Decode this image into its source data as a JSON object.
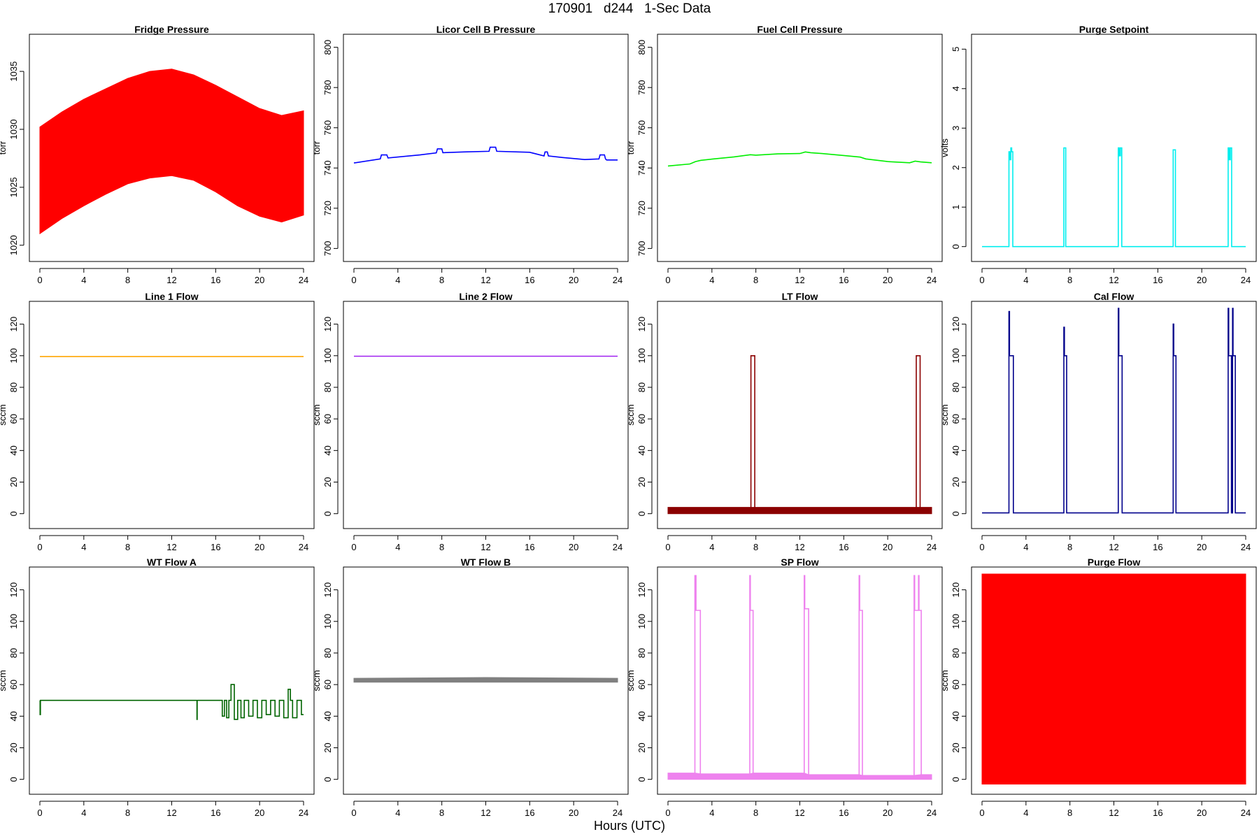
{
  "figure": {
    "title": "170901   d244   1-Sec Data",
    "xlabel": "Hours (UTC)"
  },
  "chart_data": [
    {
      "type": "line",
      "title": "Fridge Pressure",
      "ylabel": "torr",
      "color": "#ff0000",
      "xlim": [
        0,
        24
      ],
      "ylim": [
        1019.2,
        1037.6
      ],
      "xticks": [
        0,
        4,
        8,
        12,
        16,
        20,
        24
      ],
      "yticks": [
        1020,
        1025,
        1030,
        1035
      ],
      "band": {
        "x": [
          0,
          2,
          4,
          6,
          8,
          10,
          12,
          14,
          16,
          18,
          20,
          22,
          24
        ],
        "low": [
          1021,
          1022.3,
          1023.4,
          1024.4,
          1025.3,
          1025.8,
          1026,
          1025.6,
          1024.6,
          1023.4,
          1022.5,
          1022,
          1022.6
        ],
        "high": [
          1030.2,
          1031.5,
          1032.6,
          1033.5,
          1034.4,
          1035,
          1035.2,
          1034.7,
          1033.8,
          1032.8,
          1031.8,
          1031.2,
          1031.6
        ]
      }
    },
    {
      "type": "line",
      "title": "Licor Cell B Pressure",
      "ylabel": "torr",
      "color": "#0000ff",
      "xlim": [
        0,
        24
      ],
      "ylim": [
        697,
        803
      ],
      "xticks": [
        0,
        4,
        8,
        12,
        16,
        20,
        24
      ],
      "yticks": [
        700,
        720,
        740,
        760,
        780,
        800
      ],
      "x": [
        0,
        2.4,
        2.5,
        3,
        3.1,
        6,
        7.5,
        7.6,
        8,
        8.1,
        10,
        12.3,
        12.4,
        12.9,
        13,
        16,
        17.3,
        17.4,
        17.6,
        17.7,
        19,
        21,
        22.3,
        22.4,
        22.8,
        22.9,
        23,
        24
      ],
      "y": [
        742.5,
        744.5,
        746.5,
        746.5,
        745,
        746.5,
        747.5,
        749.5,
        749.5,
        747.6,
        748,
        748.3,
        750.3,
        750.3,
        748.3,
        747.8,
        746,
        748,
        748,
        746,
        745.2,
        744.2,
        744.5,
        746.5,
        746.5,
        744.5,
        744,
        744
      ]
    },
    {
      "type": "line",
      "title": "Fuel Cell Pressure",
      "ylabel": "torr",
      "color": "#00ee00",
      "xlim": [
        0,
        24
      ],
      "ylim": [
        697,
        803
      ],
      "xticks": [
        0,
        4,
        8,
        12,
        16,
        20,
        24
      ],
      "yticks": [
        700,
        720,
        740,
        760,
        780,
        800
      ],
      "x": [
        0,
        2,
        2.5,
        3,
        4,
        6,
        7.5,
        8,
        10,
        12,
        12.5,
        13,
        14,
        16,
        17.5,
        18,
        20,
        22,
        22.5,
        23,
        24
      ],
      "y": [
        741,
        742,
        743.2,
        743.8,
        744.4,
        745.5,
        746.6,
        746.4,
        747,
        747.2,
        748,
        747.6,
        747.2,
        746.2,
        745.4,
        744.5,
        743.2,
        742.6,
        743.4,
        743,
        742.6
      ]
    },
    {
      "type": "line",
      "title": "Purge Setpoint",
      "ylabel": "volts",
      "color": "#00eeee",
      "xlim": [
        0,
        24
      ],
      "ylim": [
        -0.2,
        5.2
      ],
      "xticks": [
        0,
        4,
        8,
        12,
        16,
        20,
        24
      ],
      "yticks": [
        0,
        1,
        2,
        3,
        4,
        5
      ],
      "x": [
        0,
        2.45,
        2.45,
        2.55,
        2.55,
        2.62,
        2.62,
        2.7,
        2.7,
        2.8,
        2.8,
        7.45,
        7.45,
        7.62,
        7.62,
        12.4,
        12.4,
        12.5,
        12.5,
        12.6,
        12.6,
        12.72,
        12.72,
        17.4,
        17.4,
        17.6,
        17.6,
        22.4,
        22.4,
        22.5,
        22.5,
        22.6,
        22.6,
        22.72,
        22.72,
        24
      ],
      "y": [
        0,
        0,
        2.4,
        2.4,
        2.2,
        2.2,
        2.5,
        2.5,
        2.4,
        2.4,
        0,
        0,
        2.5,
        2.5,
        0,
        0,
        2.5,
        2.5,
        2.3,
        2.3,
        2.5,
        2.5,
        0,
        0,
        2.45,
        2.45,
        0,
        0,
        2.5,
        2.5,
        2.2,
        2.2,
        2.5,
        2.5,
        0,
        0
      ]
    },
    {
      "type": "line",
      "title": "Line 1 Flow",
      "ylabel": "sccm",
      "color": "#ffa500",
      "xlim": [
        0,
        24
      ],
      "ylim": [
        -5,
        130
      ],
      "xticks": [
        0,
        4,
        8,
        12,
        16,
        20,
        24
      ],
      "yticks": [
        0,
        20,
        40,
        60,
        80,
        100,
        120
      ],
      "x": [
        0,
        24
      ],
      "y": [
        99.5,
        99.5
      ]
    },
    {
      "type": "line",
      "title": "Line 2 Flow",
      "ylabel": "sccm",
      "color": "#a020f0",
      "xlim": [
        0,
        24
      ],
      "ylim": [
        -5,
        130
      ],
      "xticks": [
        0,
        4,
        8,
        12,
        16,
        20,
        24
      ],
      "yticks": [
        0,
        20,
        40,
        60,
        80,
        100,
        120
      ],
      "x": [
        0,
        24
      ],
      "y": [
        99.7,
        99.7
      ]
    },
    {
      "type": "line",
      "title": "LT Flow",
      "ylabel": "sccm",
      "color": "#8b0000",
      "xlim": [
        0,
        24
      ],
      "ylim": [
        -5,
        130
      ],
      "xticks": [
        0,
        4,
        8,
        12,
        16,
        20,
        24
      ],
      "yticks": [
        0,
        20,
        40,
        60,
        80,
        100,
        120
      ],
      "x": [
        0,
        7.55,
        7.55,
        7.9,
        7.9,
        22.6,
        22.6,
        22.95,
        22.95,
        24
      ],
      "y": [
        2,
        2,
        100,
        100,
        2,
        2,
        100,
        100,
        2,
        2
      ],
      "band": {
        "x": [
          0,
          7.55,
          7.9,
          22.6,
          22.95,
          24
        ],
        "low": [
          0,
          0,
          0,
          0,
          0,
          0
        ],
        "high": [
          4,
          4,
          4,
          4,
          4,
          4
        ]
      }
    },
    {
      "type": "line",
      "title": "Cal Flow",
      "ylabel": "sccm",
      "color": "#00008b",
      "xlim": [
        0,
        24
      ],
      "ylim": [
        -5,
        130
      ],
      "xticks": [
        0,
        4,
        8,
        12,
        16,
        20,
        24
      ],
      "yticks": [
        0,
        20,
        40,
        60,
        80,
        100,
        120
      ],
      "x": [
        0,
        2.45,
        2.45,
        2.5,
        2.5,
        2.85,
        2.85,
        7.45,
        7.45,
        7.5,
        7.5,
        7.7,
        7.7,
        12.4,
        12.4,
        12.45,
        12.45,
        12.75,
        12.75,
        17.4,
        17.4,
        17.45,
        17.45,
        17.65,
        17.65,
        22.4,
        22.4,
        22.45,
        22.45,
        22.7,
        22.7,
        22.8,
        22.8,
        22.85,
        22.85,
        23.05,
        23.05,
        24
      ],
      "y": [
        0.5,
        0.5,
        128,
        128,
        100,
        100,
        0.5,
        0.5,
        118,
        118,
        100,
        100,
        0.5,
        0.5,
        130,
        130,
        100,
        100,
        0.5,
        0.5,
        120,
        120,
        100,
        100,
        0.5,
        0.5,
        130,
        130,
        100,
        100,
        0.5,
        0.5,
        130,
        130,
        100,
        100,
        0.5,
        0.5
      ]
    },
    {
      "type": "line",
      "title": "WT Flow A",
      "ylabel": "sccm",
      "color": "#006400",
      "xlim": [
        0,
        24
      ],
      "ylim": [
        -5,
        130
      ],
      "xticks": [
        0,
        4,
        8,
        12,
        16,
        20,
        24
      ],
      "yticks": [
        0,
        20,
        40,
        60,
        80,
        100,
        120
      ],
      "x": [
        0,
        0.02,
        0.02,
        0.05,
        0.05,
        14.3,
        14.3,
        14.32,
        14.32,
        16.6,
        16.6,
        16.8,
        16.8,
        17,
        17,
        17.2,
        17.2,
        17.4,
        17.4,
        17.7,
        17.7,
        18,
        18,
        18.3,
        18.3,
        18.6,
        18.6,
        19,
        19,
        19.4,
        19.4,
        19.8,
        19.8,
        20.2,
        20.2,
        20.6,
        20.6,
        21,
        21,
        21.4,
        21.4,
        21.8,
        21.8,
        22.2,
        22.2,
        22.6,
        22.6,
        22.8,
        22.8,
        23,
        23,
        23.4,
        23.4,
        23.8,
        23.8,
        24
      ],
      "y": [
        50,
        50,
        41,
        41,
        50,
        50,
        38,
        38,
        50,
        50,
        40,
        40,
        50,
        50,
        39,
        39,
        50,
        50,
        60,
        60,
        38,
        38,
        50,
        50,
        39,
        39,
        50,
        50,
        40,
        40,
        50,
        50,
        39,
        39,
        50,
        50,
        41,
        41,
        50,
        50,
        40,
        40,
        50,
        50,
        39,
        39,
        57,
        57,
        50,
        50,
        39,
        39,
        50,
        50,
        41,
        41
      ]
    },
    {
      "type": "line",
      "title": "WT Flow B",
      "ylabel": "sccm",
      "color": "#808080",
      "xlim": [
        0,
        24
      ],
      "ylim": [
        -5,
        130
      ],
      "xticks": [
        0,
        4,
        8,
        12,
        16,
        20,
        24
      ],
      "yticks": [
        0,
        20,
        40,
        60,
        80,
        100,
        120
      ],
      "x": [
        0,
        24
      ],
      "y": [
        63,
        63
      ],
      "band": {
        "x": [
          0,
          12,
          24
        ],
        "low": [
          61.5,
          61.5,
          61.5
        ],
        "high": [
          64,
          64.5,
          64
        ]
      }
    },
    {
      "type": "line",
      "title": "SP Flow",
      "ylabel": "sccm",
      "color": "#ee82ee",
      "xlim": [
        0,
        24
      ],
      "ylim": [
        -5,
        130
      ],
      "xticks": [
        0,
        4,
        8,
        12,
        16,
        20,
        24
      ],
      "yticks": [
        0,
        20,
        40,
        60,
        80,
        100,
        120
      ],
      "x": [
        0,
        2.45,
        2.45,
        2.55,
        2.55,
        2.95,
        2.95,
        7.45,
        7.45,
        7.5,
        7.5,
        7.75,
        7.75,
        12.4,
        12.4,
        12.45,
        12.45,
        12.8,
        12.8,
        17.4,
        17.4,
        17.45,
        17.45,
        17.7,
        17.7,
        22.4,
        22.4,
        22.45,
        22.45,
        22.8,
        22.8,
        22.85,
        22.85,
        23.05,
        23.05,
        24
      ],
      "y": [
        2,
        2,
        129,
        129,
        107,
        107,
        2,
        2,
        129,
        129,
        107,
        107,
        2,
        2,
        129,
        129,
        108,
        108,
        2,
        2,
        129,
        129,
        107,
        107,
        2,
        2,
        129,
        129,
        107,
        107,
        129,
        129,
        107,
        107,
        2,
        2
      ],
      "band": {
        "x": [
          0,
          2.45,
          2.95,
          7.45,
          7.75,
          12.4,
          12.8,
          17.4,
          17.7,
          22.4,
          23.05,
          24
        ],
        "low": [
          0,
          0,
          0,
          0,
          0,
          0,
          0,
          0,
          0,
          0,
          0,
          0
        ],
        "high": [
          4,
          4,
          3.5,
          3.5,
          4,
          4,
          3,
          3,
          2.5,
          2.5,
          3,
          3
        ]
      }
    },
    {
      "type": "line",
      "title": "Purge Flow",
      "ylabel": "sccm",
      "color": "#ff0000",
      "xlim": [
        0,
        24
      ],
      "ylim": [
        -5,
        130
      ],
      "xticks": [
        0,
        4,
        8,
        12,
        16,
        20,
        24
      ],
      "yticks": [
        0,
        20,
        40,
        60,
        80,
        100,
        120
      ],
      "band": {
        "x": [
          0,
          24
        ],
        "low": [
          -3,
          -3
        ],
        "high": [
          130,
          130
        ]
      }
    }
  ]
}
